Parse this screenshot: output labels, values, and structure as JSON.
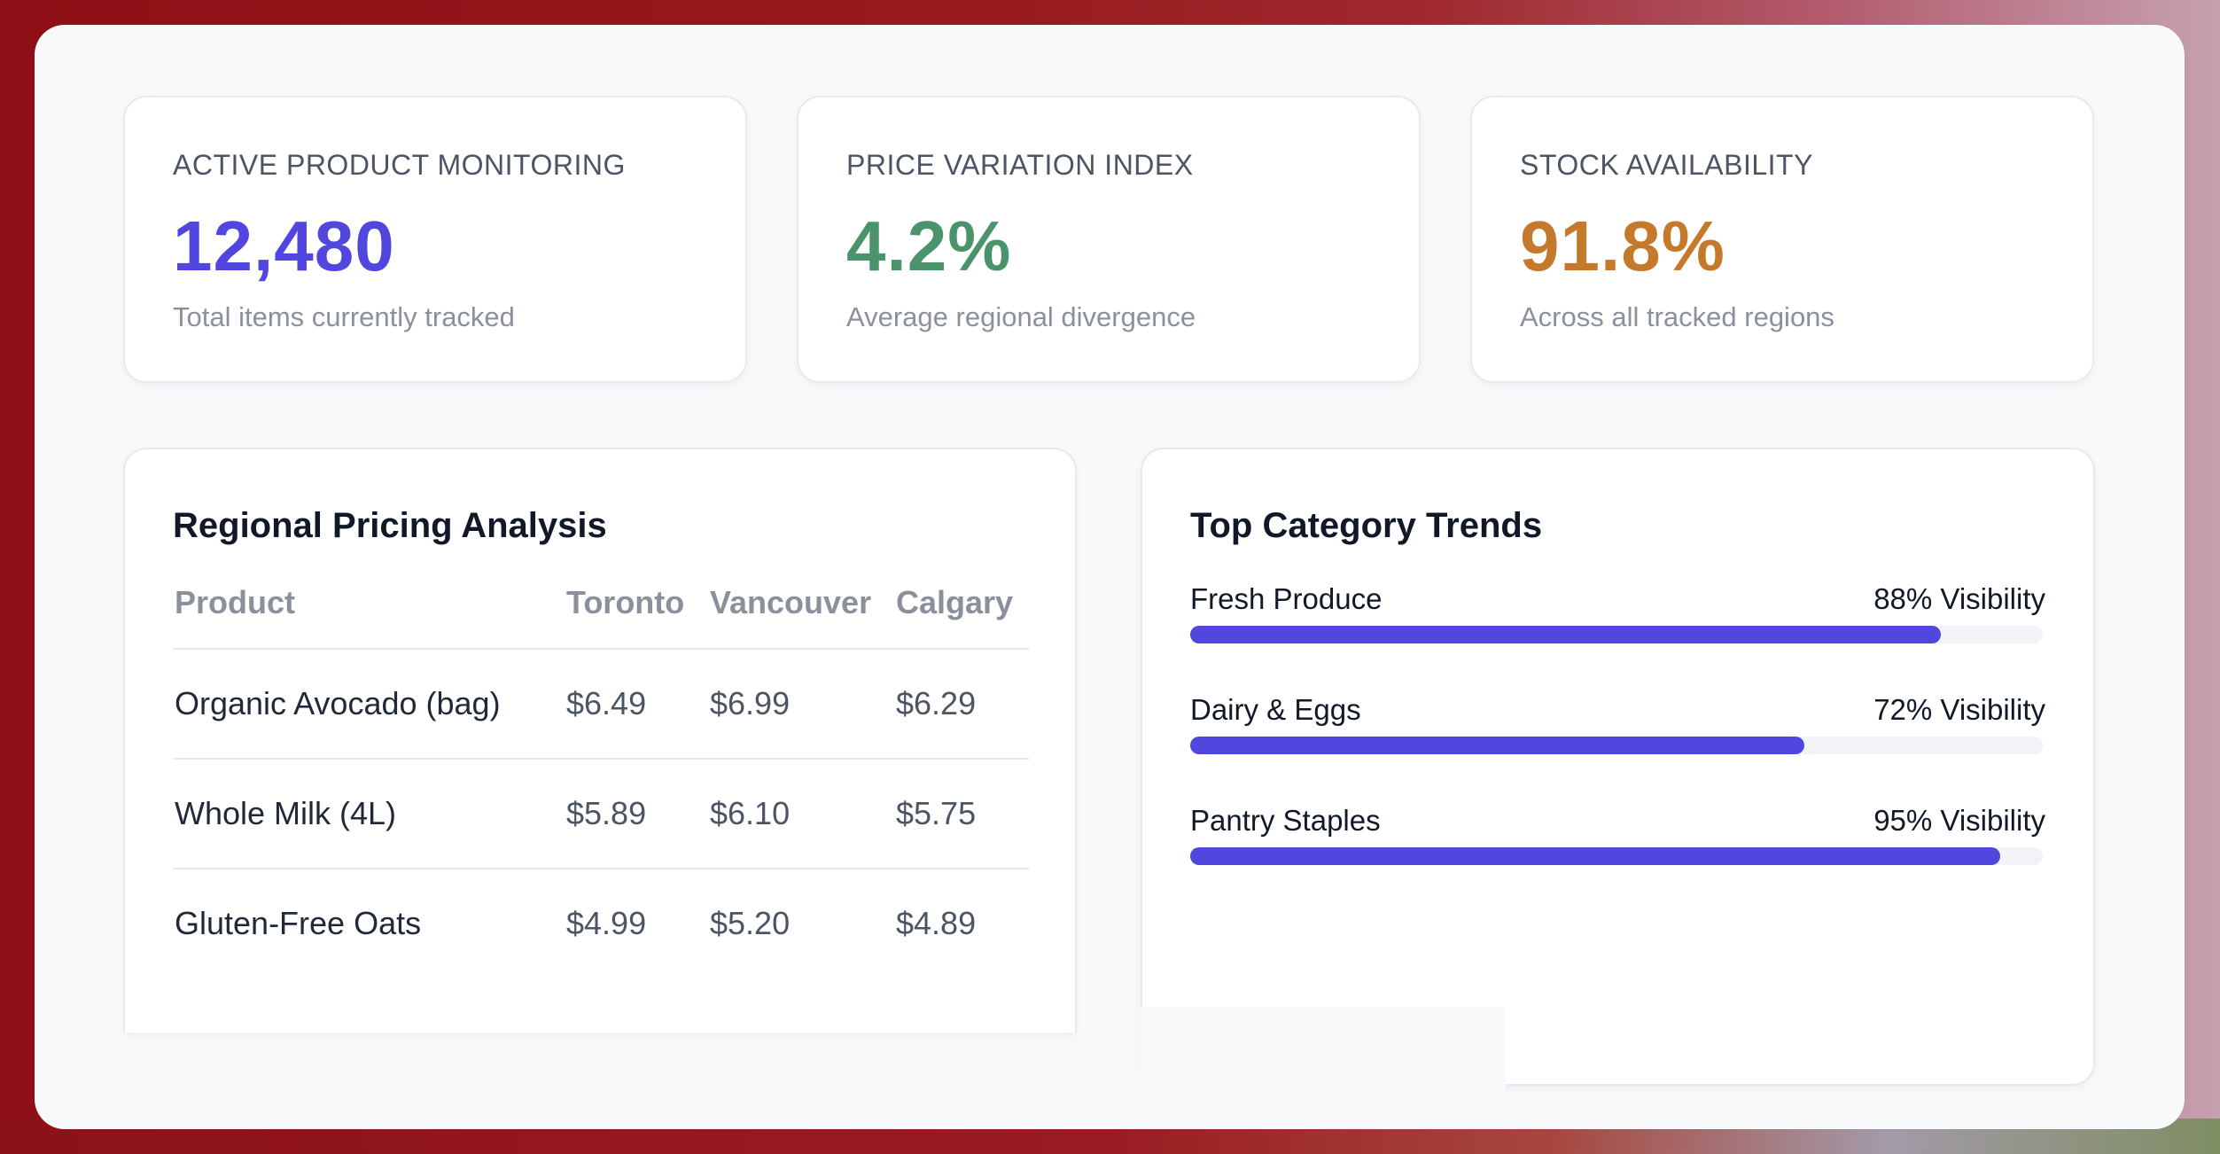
{
  "colors": {
    "accent_blue": "#5146dd",
    "accent_green": "#4b936b",
    "accent_orange": "#c47a2a",
    "bar_fill": "#5146dd",
    "bar_track": "#f1f3f7"
  },
  "stats": [
    {
      "label": "ACTIVE PRODUCT MONITORING",
      "value": "12,480",
      "sub": "Total items currently tracked"
    },
    {
      "label": "PRICE VARIATION INDEX",
      "value": "4.2%",
      "sub": "Average regional divergence"
    },
    {
      "label": "STOCK AVAILABILITY",
      "value": "91.8%",
      "sub": "Across all tracked regions"
    }
  ],
  "pricing": {
    "title": "Regional Pricing Analysis",
    "columns": [
      "Product",
      "Toronto",
      "Vancouver",
      "Calgary"
    ],
    "rows": [
      [
        "Organic Avocado (bag)",
        "$6.49",
        "$6.99",
        "$6.29"
      ],
      [
        "Whole Milk (4L)",
        "$5.89",
        "$6.10",
        "$5.75"
      ],
      [
        "Gluten-Free Oats",
        "$4.99",
        "$5.20",
        "$4.89"
      ]
    ]
  },
  "trends": {
    "title": "Top Category Trends",
    "items": [
      {
        "label": "Fresh Produce",
        "value_text": "88% Visibility",
        "value": 0.88
      },
      {
        "label": "Dairy & Eggs",
        "value_text": "72% Visibility",
        "value": 0.72
      },
      {
        "label": "Pantry Staples",
        "value_text": "95% Visibility",
        "value": 0.95
      }
    ]
  }
}
